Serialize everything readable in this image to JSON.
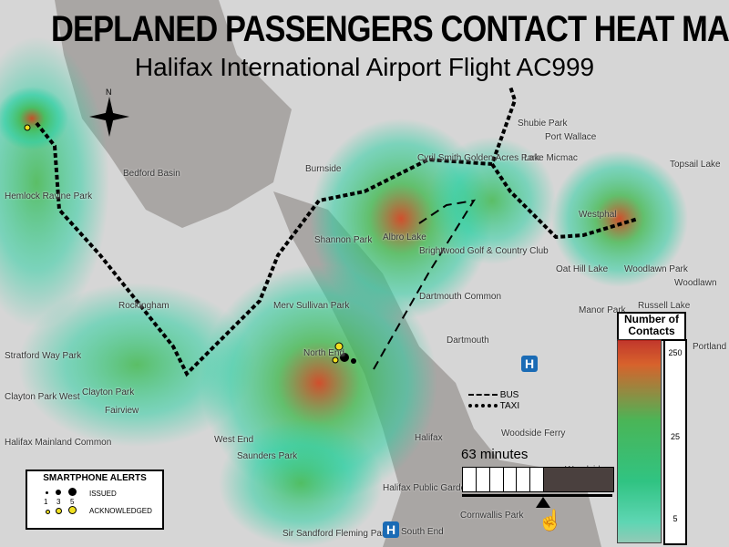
{
  "title": "DEPLANED PASSENGERS CONTACT HEAT MAP",
  "subtitle": "Halifax International Airport Flight AC999",
  "places": [
    {
      "t": "Bedford Basin",
      "k": "bb"
    },
    {
      "t": "Burnside",
      "k": "bu"
    },
    {
      "t": "Albro Lake",
      "k": "al"
    },
    {
      "t": "Cyril Smith Golden Acres Park",
      "k": "cs"
    },
    {
      "t": "Brightwood Golf & Country Club",
      "k": "bg"
    },
    {
      "t": "Shannon Park",
      "k": "sp"
    },
    {
      "t": "Dartmouth",
      "k": "da"
    },
    {
      "t": "Dartmouth Common",
      "k": "dc"
    },
    {
      "t": "Lake Micmac",
      "k": "lm"
    },
    {
      "t": "Westphal",
      "k": "we"
    },
    {
      "t": "Woodlawn Park",
      "k": "wp"
    },
    {
      "t": "Oat Hill Lake",
      "k": "oh"
    },
    {
      "t": "Manor Park",
      "k": "mp"
    },
    {
      "t": "Russell Lake",
      "k": "rl"
    },
    {
      "t": "Portland Estates",
      "k": "pe"
    },
    {
      "t": "Topsail Lake",
      "k": "tl"
    },
    {
      "t": "Port Wallace",
      "k": "pw"
    },
    {
      "t": "Shubie Park",
      "k": "sh"
    },
    {
      "t": "Hemlock Ravine Park",
      "k": "hr"
    },
    {
      "t": "Rockingham",
      "k": "ro"
    },
    {
      "t": "Stratford Way Park",
      "k": "sw"
    },
    {
      "t": "Clayton Park",
      "k": "cp"
    },
    {
      "t": "Clayton Park West",
      "k": "cw"
    },
    {
      "t": "Fairview",
      "k": "fv"
    },
    {
      "t": "Merv Sullivan Park",
      "k": "ms"
    },
    {
      "t": "North End",
      "k": "ne"
    },
    {
      "t": "West End",
      "k": "wen"
    },
    {
      "t": "Saunders Park",
      "k": "sa"
    },
    {
      "t": "Halifax",
      "k": "hx"
    },
    {
      "t": "Halifax Mainland Common",
      "k": "hm"
    },
    {
      "t": "Halifax Public Gardens",
      "k": "hp"
    },
    {
      "t": "Cornwallis Park",
      "k": "co"
    },
    {
      "t": "South End",
      "k": "se"
    },
    {
      "t": "Sir Sandford Fleming Park",
      "k": "sf"
    },
    {
      "t": "Woodside",
      "k": "wo"
    },
    {
      "t": "Woodside Ferry",
      "k": "wf"
    },
    {
      "t": "Woodlawn",
      "k": "wl"
    }
  ],
  "route_legend": {
    "bus": "BUS",
    "taxi": "TAXI"
  },
  "slider": {
    "label": "63 minutes",
    "elapsed_minutes": 63,
    "progress_fraction": 0.54
  },
  "contacts_legend": {
    "title": "Number of Contacts",
    "ticks": [
      "250",
      "25",
      "5"
    ]
  },
  "alerts_legend": {
    "title": "SMARTPHONE ALERTS",
    "issued": "ISSUED",
    "acknowledged": "ACKNOWLEDGED",
    "sizes": [
      "1",
      "3",
      "5"
    ]
  },
  "hospital_icon": "H",
  "colors": {
    "heat_high": "#d0401a",
    "heat_mid": "#3cb84a",
    "heat_low": "#20d0a0",
    "issued": "#000000",
    "acknowledged": "#f0e020",
    "hospital": "#1a6bb5"
  }
}
